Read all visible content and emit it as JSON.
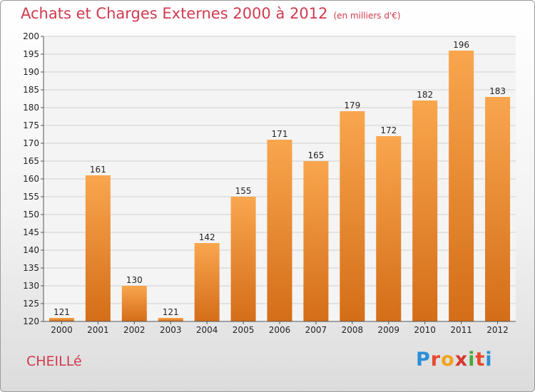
{
  "title": "Achats et Charges Externes 2000 à 2012",
  "unit": "(en milliers d'€)",
  "commune": "CHEILLé",
  "logo": "Proxiti",
  "colors": {
    "accent": "#d13a4e",
    "bar_top": "#f9a64e",
    "bar_bottom": "#d46d18"
  },
  "chart_data": {
    "type": "bar",
    "categories": [
      "2000",
      "2001",
      "2002",
      "2003",
      "2004",
      "2005",
      "2006",
      "2007",
      "2008",
      "2009",
      "2010",
      "2011",
      "2012"
    ],
    "values": [
      121,
      161,
      130,
      121,
      142,
      155,
      171,
      165,
      179,
      172,
      182,
      196,
      183
    ],
    "ylim": [
      120,
      200
    ],
    "yticks": [
      120,
      125,
      130,
      135,
      140,
      145,
      150,
      155,
      160,
      165,
      170,
      175,
      180,
      185,
      190,
      195,
      200
    ],
    "grid": true
  }
}
